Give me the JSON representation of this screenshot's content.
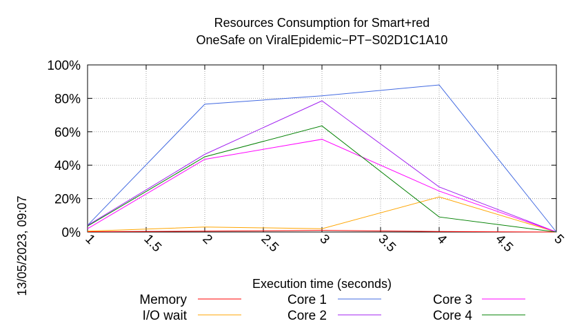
{
  "chart_data": {
    "type": "line",
    "title": [
      "Resources Consumption for Smart+red",
      "OneSafe on ViralEpidemic−PT−S02D1C1A10"
    ],
    "xlabel": "Execution time (seconds)",
    "ylabel": "",
    "side_label": "13/05/2023, 09:07",
    "xlim": [
      1,
      5
    ],
    "ylim": [
      0,
      100
    ],
    "xticks": [
      "1",
      "1.5",
      "2",
      "2.5",
      "3",
      "3.5",
      "4",
      "4.5",
      "5"
    ],
    "xtick_values": [
      1,
      1.5,
      2,
      2.5,
      3,
      3.5,
      4,
      4.5,
      5
    ],
    "yticks": [
      "0%",
      "20%",
      "40%",
      "60%",
      "80%",
      "100%"
    ],
    "ytick_values": [
      0,
      20,
      40,
      60,
      80,
      100
    ],
    "grid": true,
    "legend_placement": "bottom",
    "x": [
      1,
      2,
      3,
      4,
      5
    ],
    "series": [
      {
        "name": "Memory",
        "color": "#ff0000",
        "values": [
          0.2,
          0.5,
          1.0,
          0.3,
          0
        ]
      },
      {
        "name": "I/O wait",
        "color": "#ffa500",
        "values": [
          0.5,
          3.0,
          2.0,
          21.0,
          0
        ]
      },
      {
        "name": "Core 1",
        "color": "#4169e1",
        "values": [
          4.0,
          76.5,
          81.5,
          88.0,
          0
        ]
      },
      {
        "name": "Core 2",
        "color": "#a020f0",
        "values": [
          4.0,
          46.5,
          78.5,
          27.0,
          0
        ]
      },
      {
        "name": "Core 3",
        "color": "#ff00ff",
        "values": [
          2.0,
          43.5,
          55.5,
          24.5,
          0
        ]
      },
      {
        "name": "Core 4",
        "color": "#008000",
        "values": [
          3.5,
          45.0,
          63.5,
          9.0,
          0
        ]
      }
    ]
  }
}
